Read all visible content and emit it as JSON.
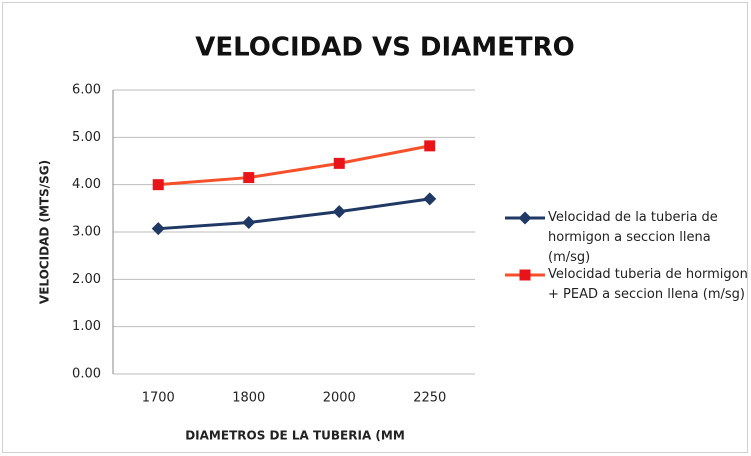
{
  "chart_data": {
    "type": "line",
    "title": "VELOCIDAD VS DIAMETRO",
    "x_label": "DIAMETROS  DE LA TUBERIA  (MM",
    "y_label": "VELOCIDAD  (MTS/SG)",
    "categories": [
      "1700",
      "1800",
      "2000",
      "2250"
    ],
    "series": [
      {
        "name": "Velocidad de la tuberia de hormigon a seccion llena (m/sg)",
        "color": "#1f3864",
        "marker": "diamond",
        "values": [
          3.07,
          3.2,
          3.43,
          3.7
        ]
      },
      {
        "name": "Velocidad  tuberia de hormigon + PEAD  a seccion llena (m/sg)",
        "color": "#f5502a",
        "marker_color": "#e8141a",
        "marker": "square",
        "values": [
          4.0,
          4.15,
          4.45,
          4.82
        ]
      }
    ],
    "ylim": [
      0,
      6
    ],
    "yticks": [
      {
        "value": 0,
        "label": "0.00"
      },
      {
        "value": 1,
        "label": "1.00"
      },
      {
        "value": 2,
        "label": "2.00"
      },
      {
        "value": 3,
        "label": "3.00"
      },
      {
        "value": 4,
        "label": "4.00"
      },
      {
        "value": 5,
        "label": "5.00"
      },
      {
        "value": 6,
        "label": "6.00"
      }
    ],
    "grid": true,
    "legend": "right"
  }
}
